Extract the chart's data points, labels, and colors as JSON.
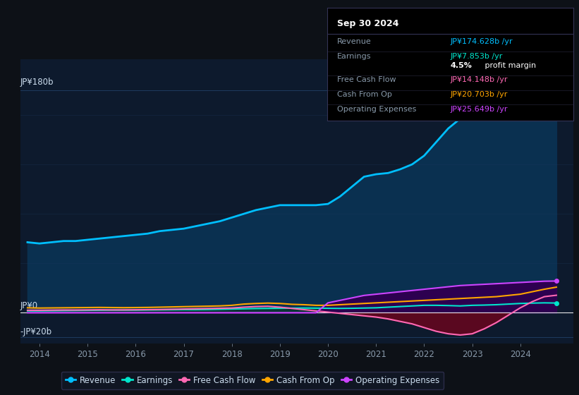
{
  "background_color": "#0d1117",
  "plot_bg_color": "#0d1a2d",
  "tooltip_title": "Sep 30 2024",
  "ylabel_180": "JP¥180b",
  "ylabel_0": "JP¥0",
  "ylabel_neg20": "-JP¥20b",
  "x_labels": [
    "2014",
    "2015",
    "2016",
    "2017",
    "2018",
    "2019",
    "2020",
    "2021",
    "2022",
    "2023",
    "2024"
  ],
  "years": [
    2013.75,
    2014.0,
    2014.25,
    2014.5,
    2014.75,
    2015.0,
    2015.25,
    2015.5,
    2015.75,
    2016.0,
    2016.25,
    2016.5,
    2016.75,
    2017.0,
    2017.25,
    2017.5,
    2017.75,
    2018.0,
    2018.25,
    2018.5,
    2018.75,
    2019.0,
    2019.25,
    2019.5,
    2019.75,
    2020.0,
    2020.25,
    2020.5,
    2020.75,
    2021.0,
    2021.25,
    2021.5,
    2021.75,
    2022.0,
    2022.25,
    2022.5,
    2022.75,
    2023.0,
    2023.25,
    2023.5,
    2023.75,
    2024.0,
    2024.25,
    2024.5,
    2024.75
  ],
  "revenue": [
    57,
    56,
    57,
    58,
    58,
    59,
    60,
    61,
    62,
    63,
    64,
    66,
    67,
    68,
    70,
    72,
    74,
    77,
    80,
    83,
    85,
    87,
    87,
    87,
    87,
    88,
    94,
    102,
    110,
    112,
    113,
    116,
    120,
    127,
    138,
    149,
    157,
    160,
    161,
    163,
    166,
    169,
    173,
    176,
    174.628
  ],
  "earnings": [
    1.5,
    1.5,
    1.6,
    1.7,
    1.8,
    1.9,
    2.0,
    2.1,
    2.1,
    2.1,
    2.2,
    2.3,
    2.4,
    2.5,
    2.5,
    2.6,
    2.8,
    3.0,
    3.2,
    3.4,
    3.5,
    3.6,
    3.7,
    3.8,
    3.7,
    3.6,
    3.5,
    3.6,
    3.8,
    4.0,
    4.5,
    5.0,
    5.5,
    6.0,
    6.0,
    5.8,
    5.5,
    6.0,
    6.2,
    6.5,
    7.0,
    7.5,
    7.8,
    8.0,
    7.853
  ],
  "free_cash_flow": [
    2.0,
    2.0,
    2.1,
    2.2,
    2.2,
    2.3,
    2.4,
    2.3,
    2.3,
    2.4,
    2.5,
    2.6,
    2.8,
    3.0,
    3.2,
    3.4,
    3.6,
    3.8,
    4.5,
    5.0,
    5.2,
    4.5,
    3.5,
    2.5,
    1.5,
    0.5,
    -0.5,
    -1.5,
    -2.5,
    -3.5,
    -5.0,
    -7.0,
    -9.0,
    -12.0,
    -15.0,
    -17.0,
    -18.0,
    -17.0,
    -13.0,
    -8.0,
    -2.0,
    4.0,
    9.0,
    13.0,
    14.148
  ],
  "cash_from_op": [
    4.0,
    3.8,
    3.9,
    4.0,
    4.1,
    4.2,
    4.3,
    4.2,
    4.1,
    4.2,
    4.3,
    4.5,
    4.7,
    4.9,
    5.1,
    5.3,
    5.5,
    6.0,
    7.0,
    7.5,
    7.8,
    7.5,
    6.8,
    6.5,
    6.0,
    6.0,
    6.5,
    7.0,
    7.5,
    8.0,
    8.5,
    9.0,
    9.5,
    10.0,
    10.5,
    11.0,
    11.5,
    12.0,
    12.5,
    13.0,
    14.0,
    15.0,
    17.0,
    19.0,
    20.703
  ],
  "operating_expenses": [
    0,
    0,
    0,
    0,
    0,
    0,
    0,
    0,
    0,
    0,
    0,
    0,
    0,
    0,
    0,
    0,
    0,
    0,
    0,
    0,
    0,
    0,
    0,
    0,
    0,
    8.0,
    10.0,
    12.0,
    14.0,
    15.0,
    16.0,
    17.0,
    18.0,
    19.0,
    20.0,
    21.0,
    22.0,
    22.5,
    23.0,
    23.5,
    24.0,
    24.5,
    25.0,
    25.5,
    25.649
  ],
  "revenue_color": "#00bfff",
  "revenue_fill": "#0a3050",
  "earnings_color": "#00e5cc",
  "earnings_fill": "#0a3535",
  "free_cash_flow_color": "#ff69b4",
  "fcf_neg_fill": "#5a0820",
  "cash_from_op_color": "#ffa500",
  "operating_expenses_color": "#cc44ff",
  "operating_expenses_fill": "#2d0050",
  "legend_items": [
    {
      "label": "Revenue",
      "color": "#00bfff"
    },
    {
      "label": "Earnings",
      "color": "#00e5cc"
    },
    {
      "label": "Free Cash Flow",
      "color": "#ff69b4"
    },
    {
      "label": "Cash From Op",
      "color": "#ffa500"
    },
    {
      "label": "Operating Expenses",
      "color": "#cc44ff"
    }
  ],
  "tooltip_rows": [
    {
      "label": "Revenue",
      "value": "JP¥174.628b /yr",
      "color": "#00bfff"
    },
    {
      "label": "Earnings",
      "value": "JP¥7.853b /yr",
      "color": "#00e5cc"
    },
    {
      "label": "",
      "value": "4.5% profit margin",
      "color": "#ffffff"
    },
    {
      "label": "Free Cash Flow",
      "value": "JP¥14.148b /yr",
      "color": "#ff69b4"
    },
    {
      "label": "Cash From Op",
      "value": "JP¥20.703b /yr",
      "color": "#ffa500"
    },
    {
      "label": "Operating Expenses",
      "value": "JP¥25.649b /yr",
      "color": "#cc44ff"
    }
  ],
  "ylim": [
    -25,
    205
  ],
  "xlim": [
    2013.6,
    2025.1
  ],
  "gridline_color": "#1e3a5f",
  "text_color": "#8899aa",
  "axis_label_color": "#ccddee"
}
